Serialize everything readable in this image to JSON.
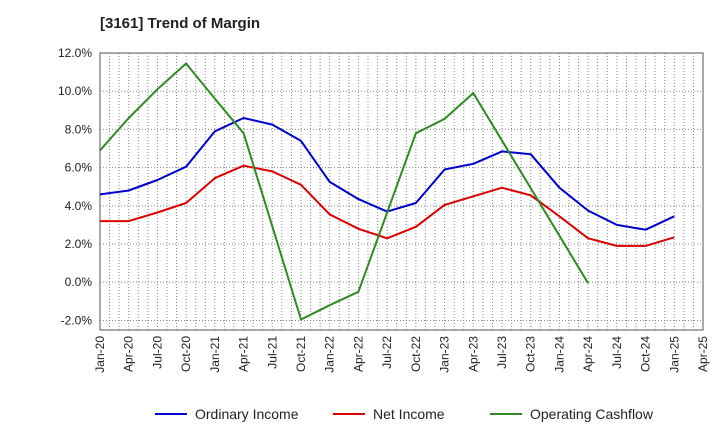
{
  "title": "[3161]  Trend of Margin",
  "chart_data": {
    "type": "line",
    "title": "[3161]  Trend of Margin",
    "xlabel": "",
    "ylabel": "",
    "x_labels": [
      "Jan-20",
      "Apr-20",
      "Jul-20",
      "Oct-20",
      "Jan-21",
      "Apr-21",
      "Jul-21",
      "Oct-21",
      "Jan-22",
      "Apr-22",
      "Jul-22",
      "Oct-22",
      "Jan-23",
      "Apr-23",
      "Jul-23",
      "Oct-23",
      "Jan-24",
      "Apr-24",
      "Jul-24",
      "Oct-24",
      "Jan-25",
      "Apr-25"
    ],
    "y_ticks": [
      "12.0%",
      "10.0%",
      "8.0%",
      "6.0%",
      "4.0%",
      "2.0%",
      "0.0%",
      "-2.0%"
    ],
    "ylim": [
      -2.5,
      12.0
    ],
    "grid": true,
    "legend_position": "bottom",
    "series": [
      {
        "name": "Ordinary Income",
        "color": "#0000cc",
        "values": [
          4.6,
          4.8,
          5.35,
          6.05,
          7.9,
          8.6,
          8.25,
          7.4,
          5.25,
          4.35,
          3.7,
          4.15,
          5.9,
          6.2,
          6.85,
          6.7,
          4.95,
          3.75,
          3.0,
          2.75,
          3.45,
          null
        ]
      },
      {
        "name": "Net Income",
        "color": "#dd0000",
        "values": [
          3.2,
          3.2,
          3.65,
          4.15,
          5.45,
          6.1,
          5.8,
          5.1,
          3.55,
          2.8,
          2.3,
          2.9,
          4.05,
          4.5,
          4.95,
          4.55,
          3.45,
          2.3,
          1.9,
          1.9,
          2.35,
          null
        ]
      },
      {
        "name": "Operating Cashflow",
        "color": "#2e8b22",
        "values": [
          6.9,
          8.6,
          10.1,
          11.45,
          9.6,
          7.8,
          null,
          -1.95,
          -1.2,
          -0.5,
          null,
          7.8,
          8.55,
          9.9,
          null,
          null,
          null,
          -0.05,
          null,
          null,
          null,
          null
        ]
      }
    ]
  }
}
